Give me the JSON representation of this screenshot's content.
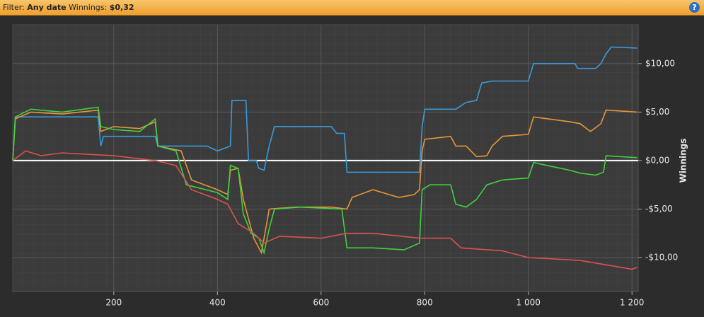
{
  "header": {
    "filter_label": "Filter:",
    "filter_value": "Any date",
    "winnings_label": "Winnings:",
    "winnings_value": "$0,32",
    "help": "?"
  },
  "chart_data": {
    "type": "line",
    "y_label": "Winnings",
    "grid": true,
    "xlim": [
      5,
      1212
    ],
    "ylim": [
      -13.5,
      14
    ],
    "xticks": [
      200,
      400,
      600,
      800,
      {
        "value": 1000,
        "label": "1 000"
      },
      {
        "value": 1200,
        "label": "1 200"
      }
    ],
    "yticks": [
      {
        "value": -10,
        "label": "-$10,00"
      },
      {
        "value": -5,
        "label": "-$5,00"
      },
      {
        "value": 0,
        "label": "$0,00"
      },
      {
        "value": 5,
        "label": "$5,00"
      },
      {
        "value": 10,
        "label": "$10,00"
      }
    ],
    "series": [
      {
        "color": "#3a9ad9",
        "x": [
          5,
          10,
          170,
          175,
          180,
          280,
          285,
          380,
          400,
          425,
          428,
          455,
          460,
          475,
          480,
          490,
          500,
          510,
          620,
          630,
          645,
          650,
          790,
          795,
          800,
          860,
          880,
          900,
          910,
          930,
          1000,
          1010,
          1090,
          1095,
          1130,
          1140,
          1150,
          1160,
          1210
        ],
        "values": [
          0,
          4.5,
          4.5,
          1.5,
          2.5,
          2.5,
          1.5,
          1.5,
          1.0,
          1.5,
          6.2,
          6.2,
          0,
          0,
          -0.8,
          -1.0,
          1.5,
          3.5,
          3.5,
          2.8,
          2.8,
          -1.2,
          -1.2,
          3.5,
          5.3,
          5.3,
          6.0,
          6.2,
          8.0,
          8.2,
          8.2,
          10.0,
          10.0,
          9.5,
          9.5,
          10.0,
          11.0,
          11.7,
          11.6
        ]
      },
      {
        "color": "#e8943a",
        "x": [
          5,
          10,
          40,
          100,
          170,
          175,
          200,
          250,
          280,
          285,
          330,
          350,
          400,
          420,
          425,
          440,
          450,
          470,
          485,
          495,
          500,
          550,
          620,
          650,
          660,
          700,
          750,
          780,
          790,
          795,
          800,
          850,
          860,
          880,
          900,
          920,
          930,
          950,
          1000,
          1010,
          1080,
          1100,
          1120,
          1140,
          1150,
          1210
        ],
        "values": [
          0,
          4.3,
          5.0,
          4.8,
          5.2,
          3.0,
          3.5,
          3.3,
          4.0,
          1.5,
          1.0,
          -2.0,
          -3.0,
          -3.5,
          -1.0,
          -0.8,
          -4.0,
          -8.0,
          -9.5,
          -6.5,
          -5.0,
          -4.8,
          -4.8,
          -5.0,
          -3.8,
          -3.0,
          -3.8,
          -3.5,
          -3.0,
          1.0,
          2.2,
          2.5,
          1.5,
          1.5,
          0.4,
          0.5,
          1.5,
          2.5,
          2.7,
          4.5,
          4.0,
          3.8,
          3.0,
          3.8,
          5.2,
          5.0
        ]
      },
      {
        "color": "#3fd13f",
        "x": [
          5,
          10,
          40,
          100,
          170,
          175,
          200,
          250,
          280,
          285,
          320,
          340,
          400,
          420,
          425,
          440,
          450,
          465,
          480,
          490,
          500,
          510,
          560,
          640,
          650,
          700,
          760,
          790,
          795,
          810,
          850,
          860,
          880,
          900,
          920,
          950,
          1000,
          1010,
          1080,
          1100,
          1130,
          1145,
          1150,
          1210
        ],
        "values": [
          0,
          4.5,
          5.3,
          5.0,
          5.5,
          3.5,
          3.2,
          3.0,
          4.3,
          1.5,
          1.0,
          -2.5,
          -3.3,
          -4.0,
          -0.5,
          -0.8,
          -5.5,
          -7.5,
          -8.0,
          -9.5,
          -7.0,
          -5.0,
          -4.8,
          -5.0,
          -9.0,
          -9.0,
          -9.2,
          -8.5,
          -3.0,
          -2.5,
          -2.5,
          -4.5,
          -4.8,
          -4.0,
          -2.5,
          -2.0,
          -1.8,
          -0.2,
          -1.0,
          -1.3,
          -1.5,
          -1.2,
          0.5,
          0.3
        ]
      },
      {
        "color": "#d9534f",
        "x": [
          5,
          30,
          60,
          100,
          200,
          280,
          320,
          350,
          400,
          420,
          440,
          470,
          490,
          520,
          600,
          650,
          700,
          790,
          850,
          870,
          950,
          1000,
          1100,
          1200,
          1210
        ],
        "values": [
          0,
          1.0,
          0.5,
          0.8,
          0.5,
          0.0,
          -0.5,
          -3.0,
          -4.0,
          -4.5,
          -6.5,
          -7.5,
          -8.5,
          -7.8,
          -8.0,
          -7.5,
          -7.5,
          -8.0,
          -8.0,
          -9.0,
          -9.3,
          -10.0,
          -10.3,
          -11.2,
          -11.0
        ]
      }
    ]
  }
}
